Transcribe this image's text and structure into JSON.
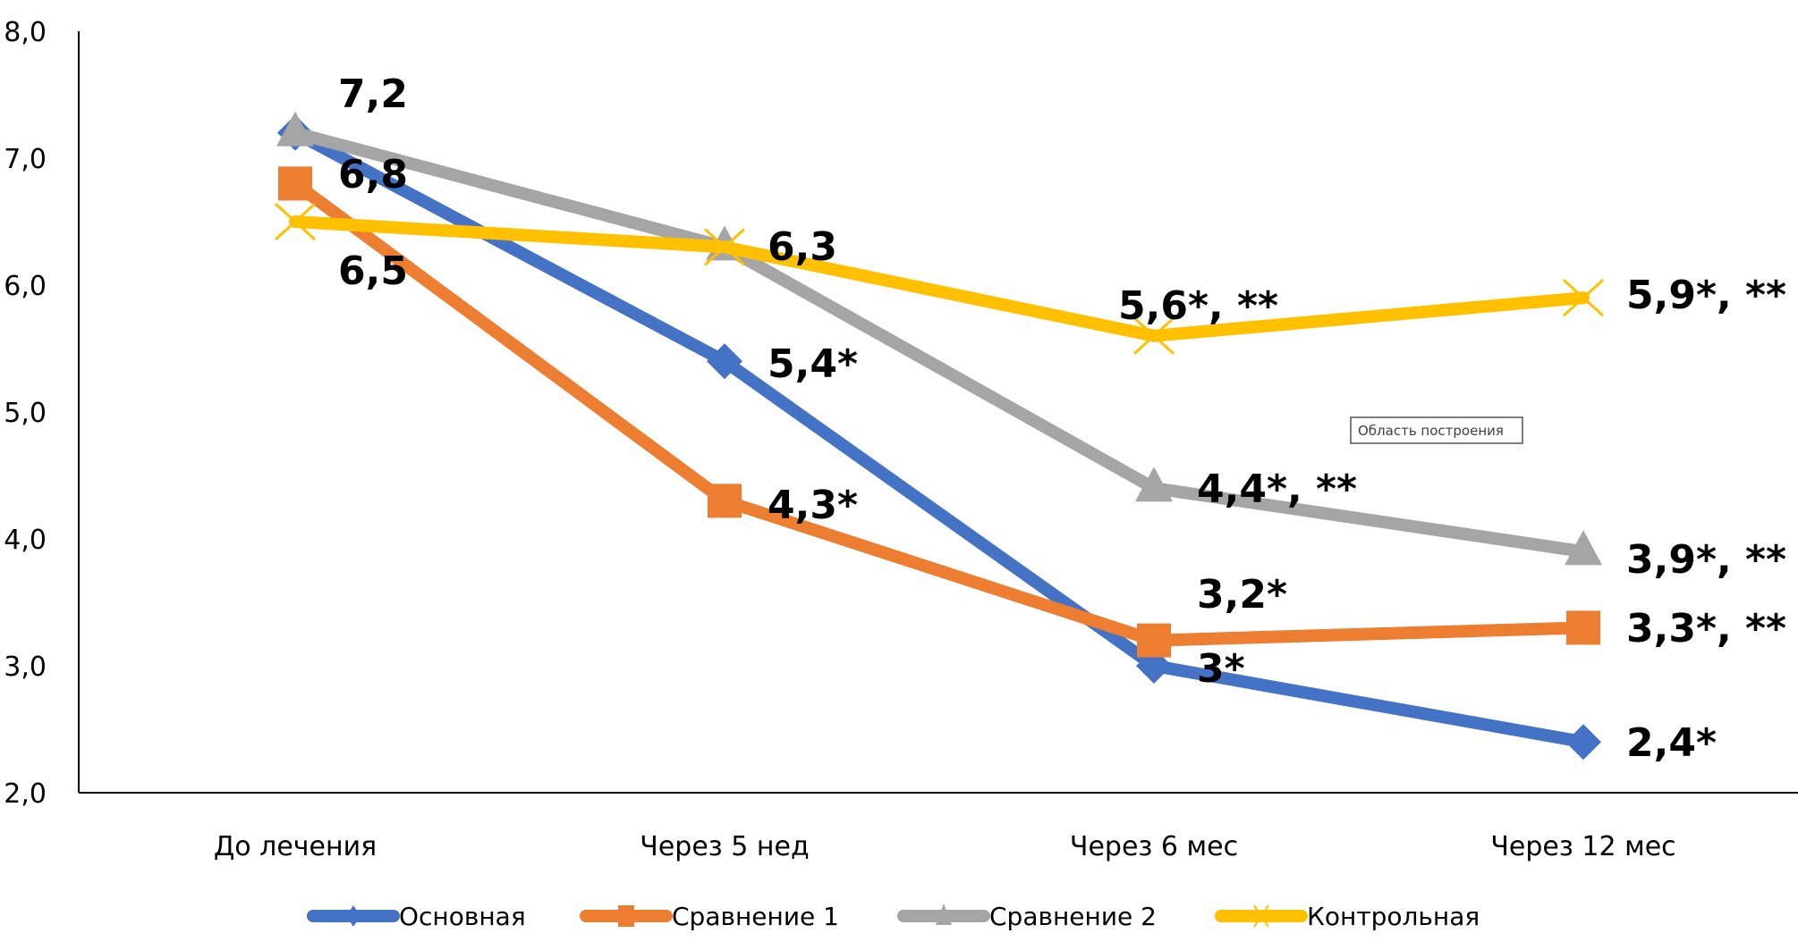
{
  "chart_data": {
    "type": "line",
    "title": "",
    "xlabel": "",
    "ylabel": "",
    "categories": [
      "До лечения",
      "Через 5 нед",
      "Через 6 мес",
      "Через 12 мес"
    ],
    "ylim": [
      2.0,
      8.0
    ],
    "yticks": [
      2.0,
      3.0,
      4.0,
      5.0,
      6.0,
      7.0,
      8.0
    ],
    "ytick_labels": [
      "2,0",
      "3,0",
      "4,0",
      "5,0",
      "6,0",
      "7,0",
      "8,0"
    ],
    "grid": false,
    "legend_position": "bottom",
    "series": [
      {
        "name": "Основная",
        "color": "#4472c4",
        "marker": "diamond",
        "values": [
          7.2,
          5.4,
          3.0,
          2.4
        ],
        "labels": [
          "7,2",
          "5,4*",
          "3*",
          "2,4*"
        ]
      },
      {
        "name": "Сравнение 1",
        "color": "#ed7d31",
        "marker": "square",
        "values": [
          6.8,
          4.3,
          3.2,
          3.3
        ],
        "labels": [
          "6,8",
          "4,3*",
          "3,2*",
          "3,3*, **"
        ]
      },
      {
        "name": "Сравнение 2",
        "color": "#a5a5a5",
        "marker": "triangle",
        "values": [
          7.2,
          6.3,
          4.4,
          3.9
        ],
        "labels": [
          "",
          "",
          "4,4*, **",
          "3,9*, **"
        ]
      },
      {
        "name": "Контрольная",
        "color": "#ffc000",
        "marker": "x",
        "values": [
          6.5,
          6.3,
          5.6,
          5.9
        ],
        "labels": [
          "6,5",
          "6,3",
          "5,6*, **",
          "5,9*, **"
        ]
      }
    ]
  },
  "tooltip": {
    "text": "Область построения"
  }
}
